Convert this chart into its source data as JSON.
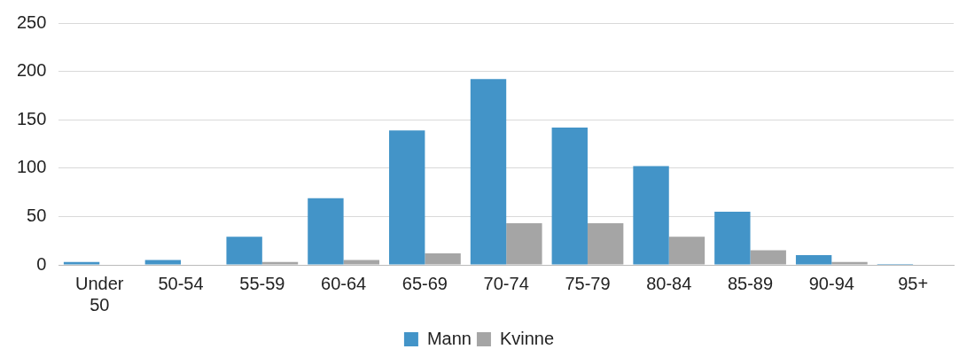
{
  "chart_data": {
    "type": "bar",
    "categories": [
      "Under 50",
      "50-54",
      "55-59",
      "60-64",
      "65-69",
      "70-74",
      "75-79",
      "80-84",
      "85-89",
      "90-94",
      "95+"
    ],
    "series": [
      {
        "name": "Mann",
        "color": "#4394c8",
        "values": [
          3,
          5,
          29,
          69,
          139,
          192,
          142,
          102,
          55,
          10,
          1
        ]
      },
      {
        "name": "Kvinne",
        "color": "#a5a5a5",
        "values": [
          0,
          0,
          3,
          5,
          12,
          43,
          43,
          29,
          15,
          3,
          0
        ]
      }
    ],
    "ylim": [
      0,
      250
    ],
    "yticks": [
      0,
      50,
      100,
      150,
      200,
      250
    ],
    "grid": "y",
    "legend": "bottom"
  }
}
